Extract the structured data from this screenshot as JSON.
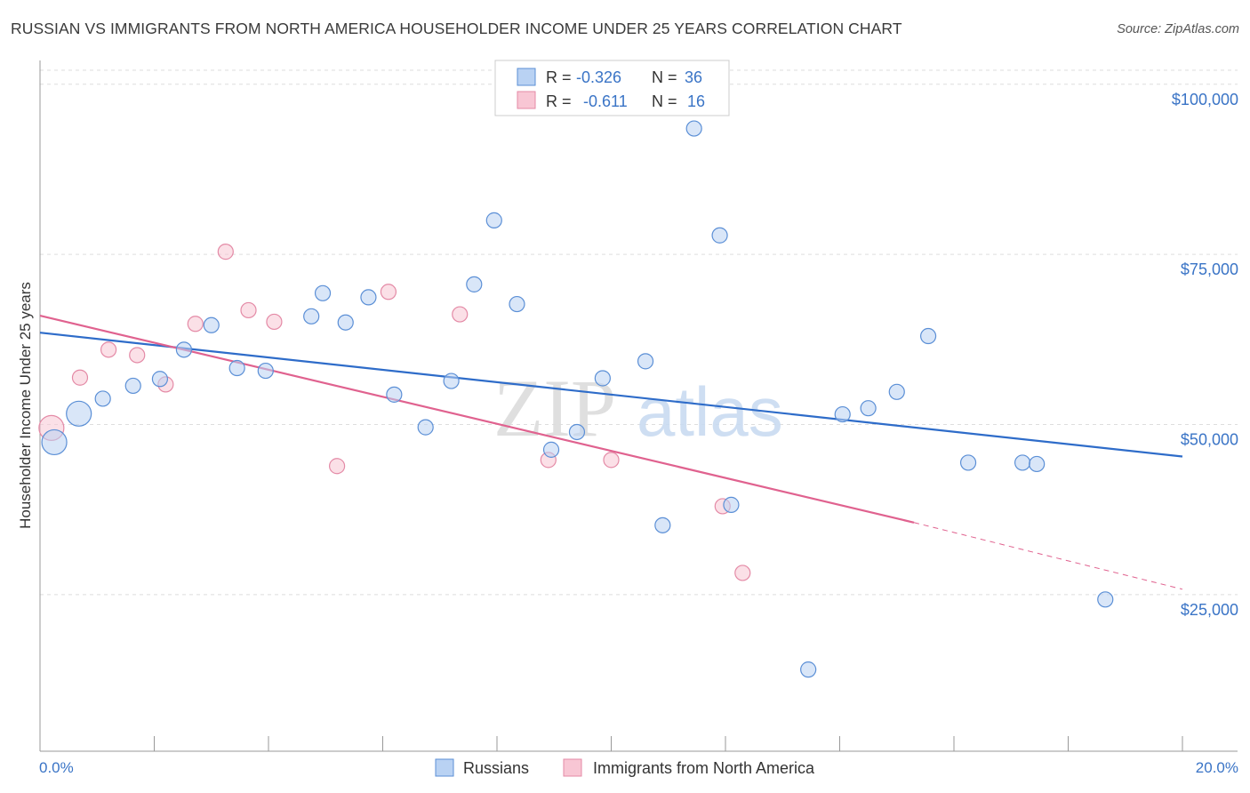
{
  "header": {
    "title": "RUSSIAN VS IMMIGRANTS FROM NORTH AMERICA HOUSEHOLDER INCOME UNDER 25 YEARS CORRELATION CHART",
    "source": "Source: ZipAtlas.com"
  },
  "watermark": {
    "zip": "ZIP",
    "atlas": "atlas"
  },
  "legend": {
    "rows": [
      {
        "r_label": "R =",
        "r_value": "-0.326",
        "n_label": "N =",
        "n_value": "36"
      },
      {
        "r_label": "R =",
        "r_value": "-0.611",
        "n_label": "N =",
        "n_value": "16"
      }
    ]
  },
  "bottom_legend": {
    "russians": "Russians",
    "immigrants": "Immigrants from North America"
  },
  "chart_data": {
    "type": "scatter",
    "title": "RUSSIAN VS IMMIGRANTS FROM NORTH AMERICA HOUSEHOLDER INCOME UNDER 25 YEARS CORRELATION CHART",
    "xlabel": "",
    "ylabel": "Householder Income Under 25 years",
    "xlim": [
      0,
      20
    ],
    "ylim": [
      2000,
      103500
    ],
    "x_tick_labels": [
      "0.0%",
      "20.0%"
    ],
    "y_ticks": [
      25000,
      50000,
      75000,
      100000
    ],
    "y_tick_labels": [
      "$25,000",
      "$50,000",
      "$75,000",
      "$100,000"
    ],
    "colors": {
      "russians_fill": "#b9d2f3",
      "russians_stroke": "#5b8fd6",
      "russians_line": "#2e6cc9",
      "immigrants_fill": "#f8c6d4",
      "immigrants_stroke": "#e48aa6",
      "immigrants_line": "#e0628f"
    },
    "series": [
      {
        "name": "Russians",
        "r": -0.326,
        "n": 36,
        "points": [
          {
            "x": 0.25,
            "y": 47400,
            "big": true
          },
          {
            "x": 0.68,
            "y": 51600,
            "big": true
          },
          {
            "x": 1.1,
            "y": 53800
          },
          {
            "x": 1.63,
            "y": 55700
          },
          {
            "x": 2.1,
            "y": 56700
          },
          {
            "x": 2.52,
            "y": 61000
          },
          {
            "x": 3.0,
            "y": 64600
          },
          {
            "x": 3.45,
            "y": 58300
          },
          {
            "x": 3.95,
            "y": 57900
          },
          {
            "x": 4.75,
            "y": 65900
          },
          {
            "x": 4.95,
            "y": 69300
          },
          {
            "x": 5.35,
            "y": 65000
          },
          {
            "x": 5.75,
            "y": 68700
          },
          {
            "x": 6.2,
            "y": 54400
          },
          {
            "x": 6.75,
            "y": 49600
          },
          {
            "x": 7.2,
            "y": 56400
          },
          {
            "x": 7.6,
            "y": 70600
          },
          {
            "x": 7.95,
            "y": 80000
          },
          {
            "x": 8.35,
            "y": 67700
          },
          {
            "x": 8.95,
            "y": 46300
          },
          {
            "x": 9.4,
            "y": 48900
          },
          {
            "x": 9.85,
            "y": 56800
          },
          {
            "x": 10.6,
            "y": 59300
          },
          {
            "x": 10.9,
            "y": 35200
          },
          {
            "x": 11.45,
            "y": 93500
          },
          {
            "x": 11.9,
            "y": 77800
          },
          {
            "x": 12.1,
            "y": 38200
          },
          {
            "x": 13.45,
            "y": 14000
          },
          {
            "x": 14.05,
            "y": 51500
          },
          {
            "x": 14.5,
            "y": 52400
          },
          {
            "x": 15.0,
            "y": 54800
          },
          {
            "x": 15.55,
            "y": 63000
          },
          {
            "x": 16.25,
            "y": 44400
          },
          {
            "x": 17.2,
            "y": 44400
          },
          {
            "x": 17.45,
            "y": 44200
          },
          {
            "x": 18.65,
            "y": 24300
          }
        ]
      },
      {
        "name": "Immigrants from North America",
        "r": -0.611,
        "n": 16,
        "points": [
          {
            "x": 0.2,
            "y": 49500,
            "big": true
          },
          {
            "x": 0.7,
            "y": 56900
          },
          {
            "x": 1.2,
            "y": 61000
          },
          {
            "x": 1.7,
            "y": 60200
          },
          {
            "x": 2.2,
            "y": 55900
          },
          {
            "x": 2.72,
            "y": 64800
          },
          {
            "x": 3.25,
            "y": 75400
          },
          {
            "x": 3.65,
            "y": 66800
          },
          {
            "x": 4.1,
            "y": 65100
          },
          {
            "x": 5.2,
            "y": 43900
          },
          {
            "x": 6.1,
            "y": 69500
          },
          {
            "x": 7.35,
            "y": 66200
          },
          {
            "x": 8.9,
            "y": 44800
          },
          {
            "x": 10.0,
            "y": 44800
          },
          {
            "x": 11.95,
            "y": 38000
          },
          {
            "x": 12.3,
            "y": 28200
          }
        ]
      }
    ],
    "trendlines": [
      {
        "series": "Russians",
        "x": [
          0,
          20
        ],
        "y": [
          63500,
          45300
        ],
        "style": "solid"
      },
      {
        "series": "Immigrants from North America",
        "x": [
          0,
          15.3
        ],
        "y": [
          66000,
          35600
        ],
        "style": "solid"
      },
      {
        "series": "Immigrants from North America",
        "x": [
          15.3,
          20
        ],
        "y": [
          35600,
          25800
        ],
        "style": "dashed"
      }
    ]
  }
}
